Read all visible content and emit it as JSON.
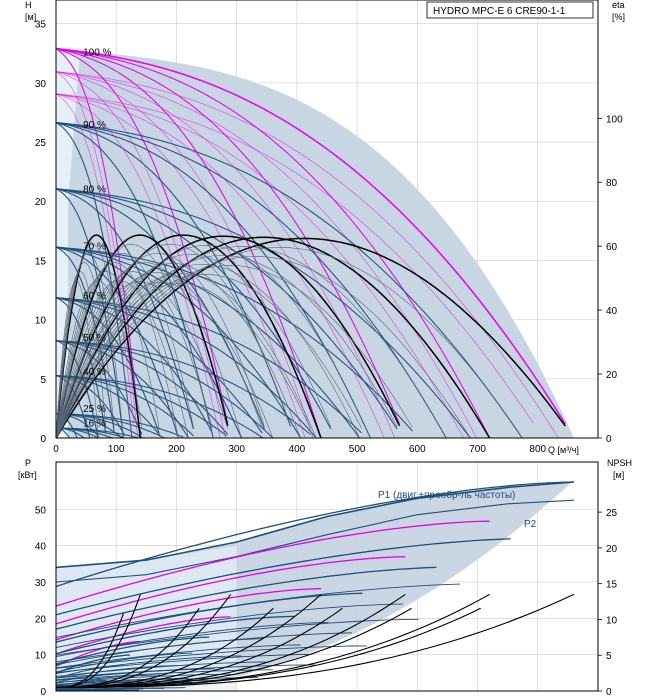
{
  "chart_data": [
    {
      "type": "line",
      "title": "HYDRO MPC-E 6 CRE90-1-1",
      "ylabel_left": "H\n[м]",
      "ylabel_right": "eta\n[%]",
      "xlabel": "Q [м³/ч]",
      "xlim": [
        0,
        900
      ],
      "ylim_left": [
        0,
        37
      ],
      "ylim_right": [
        0,
        137
      ],
      "xticks": [
        "0",
        "100",
        "200",
        "300",
        "400",
        "500",
        "600",
        "700",
        "800"
      ],
      "yticks_left": [
        "0",
        "5",
        "10",
        "15",
        "20",
        "25",
        "30",
        "35"
      ],
      "yticks_right": [
        "0",
        "20",
        "40",
        "60",
        "80",
        "100"
      ],
      "speed_labels": [
        "100 %",
        "90 %",
        "80 %",
        "70 %",
        "60 %",
        "50 %",
        "40 %",
        "25 %",
        "16 %"
      ],
      "speed_fractions": [
        1.0,
        0.9,
        0.8,
        0.7,
        0.6,
        0.5,
        0.4,
        0.25,
        0.16
      ],
      "shutoff_head_100": 32.9,
      "max_flow_100": [
        140,
        290,
        440,
        580,
        720,
        860
      ],
      "envelope": [
        [
          0,
          33
        ],
        [
          100,
          32
        ],
        [
          200,
          31
        ],
        [
          300,
          30.5
        ],
        [
          400,
          29
        ],
        [
          500,
          26
        ],
        [
          600,
          22
        ],
        [
          700,
          16
        ],
        [
          800,
          8
        ],
        [
          860,
          0
        ]
      ],
      "efficiency_peak": [
        [
          85,
          18.5
        ],
        [
          150,
          18.5
        ],
        [
          225,
          18.5
        ],
        [
          290,
          18.4
        ],
        [
          360,
          18.3
        ],
        [
          430,
          18.2
        ]
      ]
    },
    {
      "type": "line",
      "ylabel_left": "P\n[кВт]",
      "ylabel_right": "NPSH\n[м]",
      "xlim": [
        0,
        900
      ],
      "ylim_left": [
        0,
        63
      ],
      "ylim_right": [
        0,
        32
      ],
      "yticks_left": [
        "0",
        "10",
        "20",
        "30",
        "40",
        "50"
      ],
      "yticks_right": [
        "0",
        "5",
        "10",
        "15",
        "20",
        "25"
      ],
      "series": [
        {
          "name": "P1 (двиг.+преобр-ль частоты)",
          "x": [
            0,
            150,
            300,
            450,
            600,
            750,
            860
          ],
          "y": [
            34,
            36,
            41,
            48,
            53,
            56,
            57.5
          ]
        },
        {
          "name": "P2",
          "x": [
            0,
            150,
            300,
            450,
            600,
            750,
            860
          ],
          "y": [
            30,
            32,
            37,
            43,
            48.5,
            51.5,
            52.5
          ]
        }
      ],
      "npsh_end_points": [
        [
          140,
          13
        ],
        [
          290,
          13
        ],
        [
          440,
          13
        ],
        [
          580,
          13
        ],
        [
          720,
          13
        ],
        [
          860,
          13
        ]
      ]
    }
  ],
  "colors": {
    "envelope_fill": "#c4d2e0",
    "envelope_light": "#e6f0f8",
    "curve_blue": "#1f4e79",
    "curve_magenta": "#e600e6",
    "curve_black": "#000000",
    "curve_thin": "#556677",
    "grid": "#cccccc"
  }
}
